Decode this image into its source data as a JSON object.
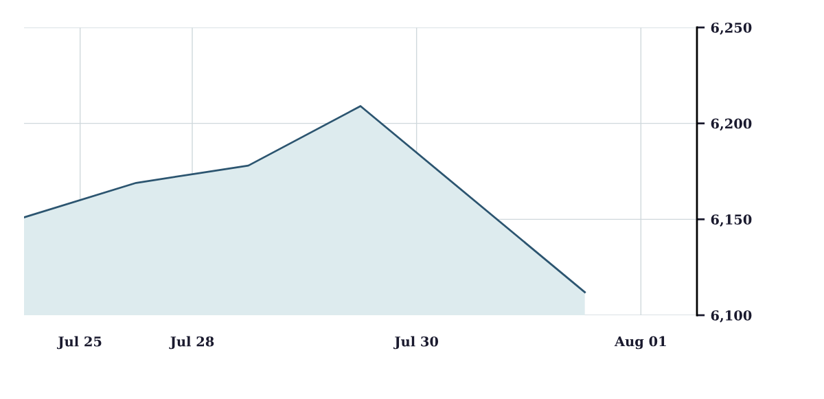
{
  "chart_data": {
    "type": "area",
    "categories": [
      null,
      "Jul 25",
      null,
      "Jul 28",
      null,
      null,
      null,
      "Jul 30",
      null,
      null,
      null,
      "Aug 01"
    ],
    "series": [
      {
        "color": "#2c5570",
        "values": [
          6151,
          null,
          6169,
          null,
          6178,
          null,
          6209,
          null,
          null,
          null,
          6112,
          null
        ]
      }
    ],
    "ylim": [
      6100,
      6250
    ],
    "yticks": [
      {
        "value": 6100,
        "label": "6,100"
      },
      {
        "value": 6150,
        "label": "6,150"
      },
      {
        "value": 6200,
        "label": "6,200"
      },
      {
        "value": 6250,
        "label": "6,250"
      }
    ],
    "grid": true
  }
}
